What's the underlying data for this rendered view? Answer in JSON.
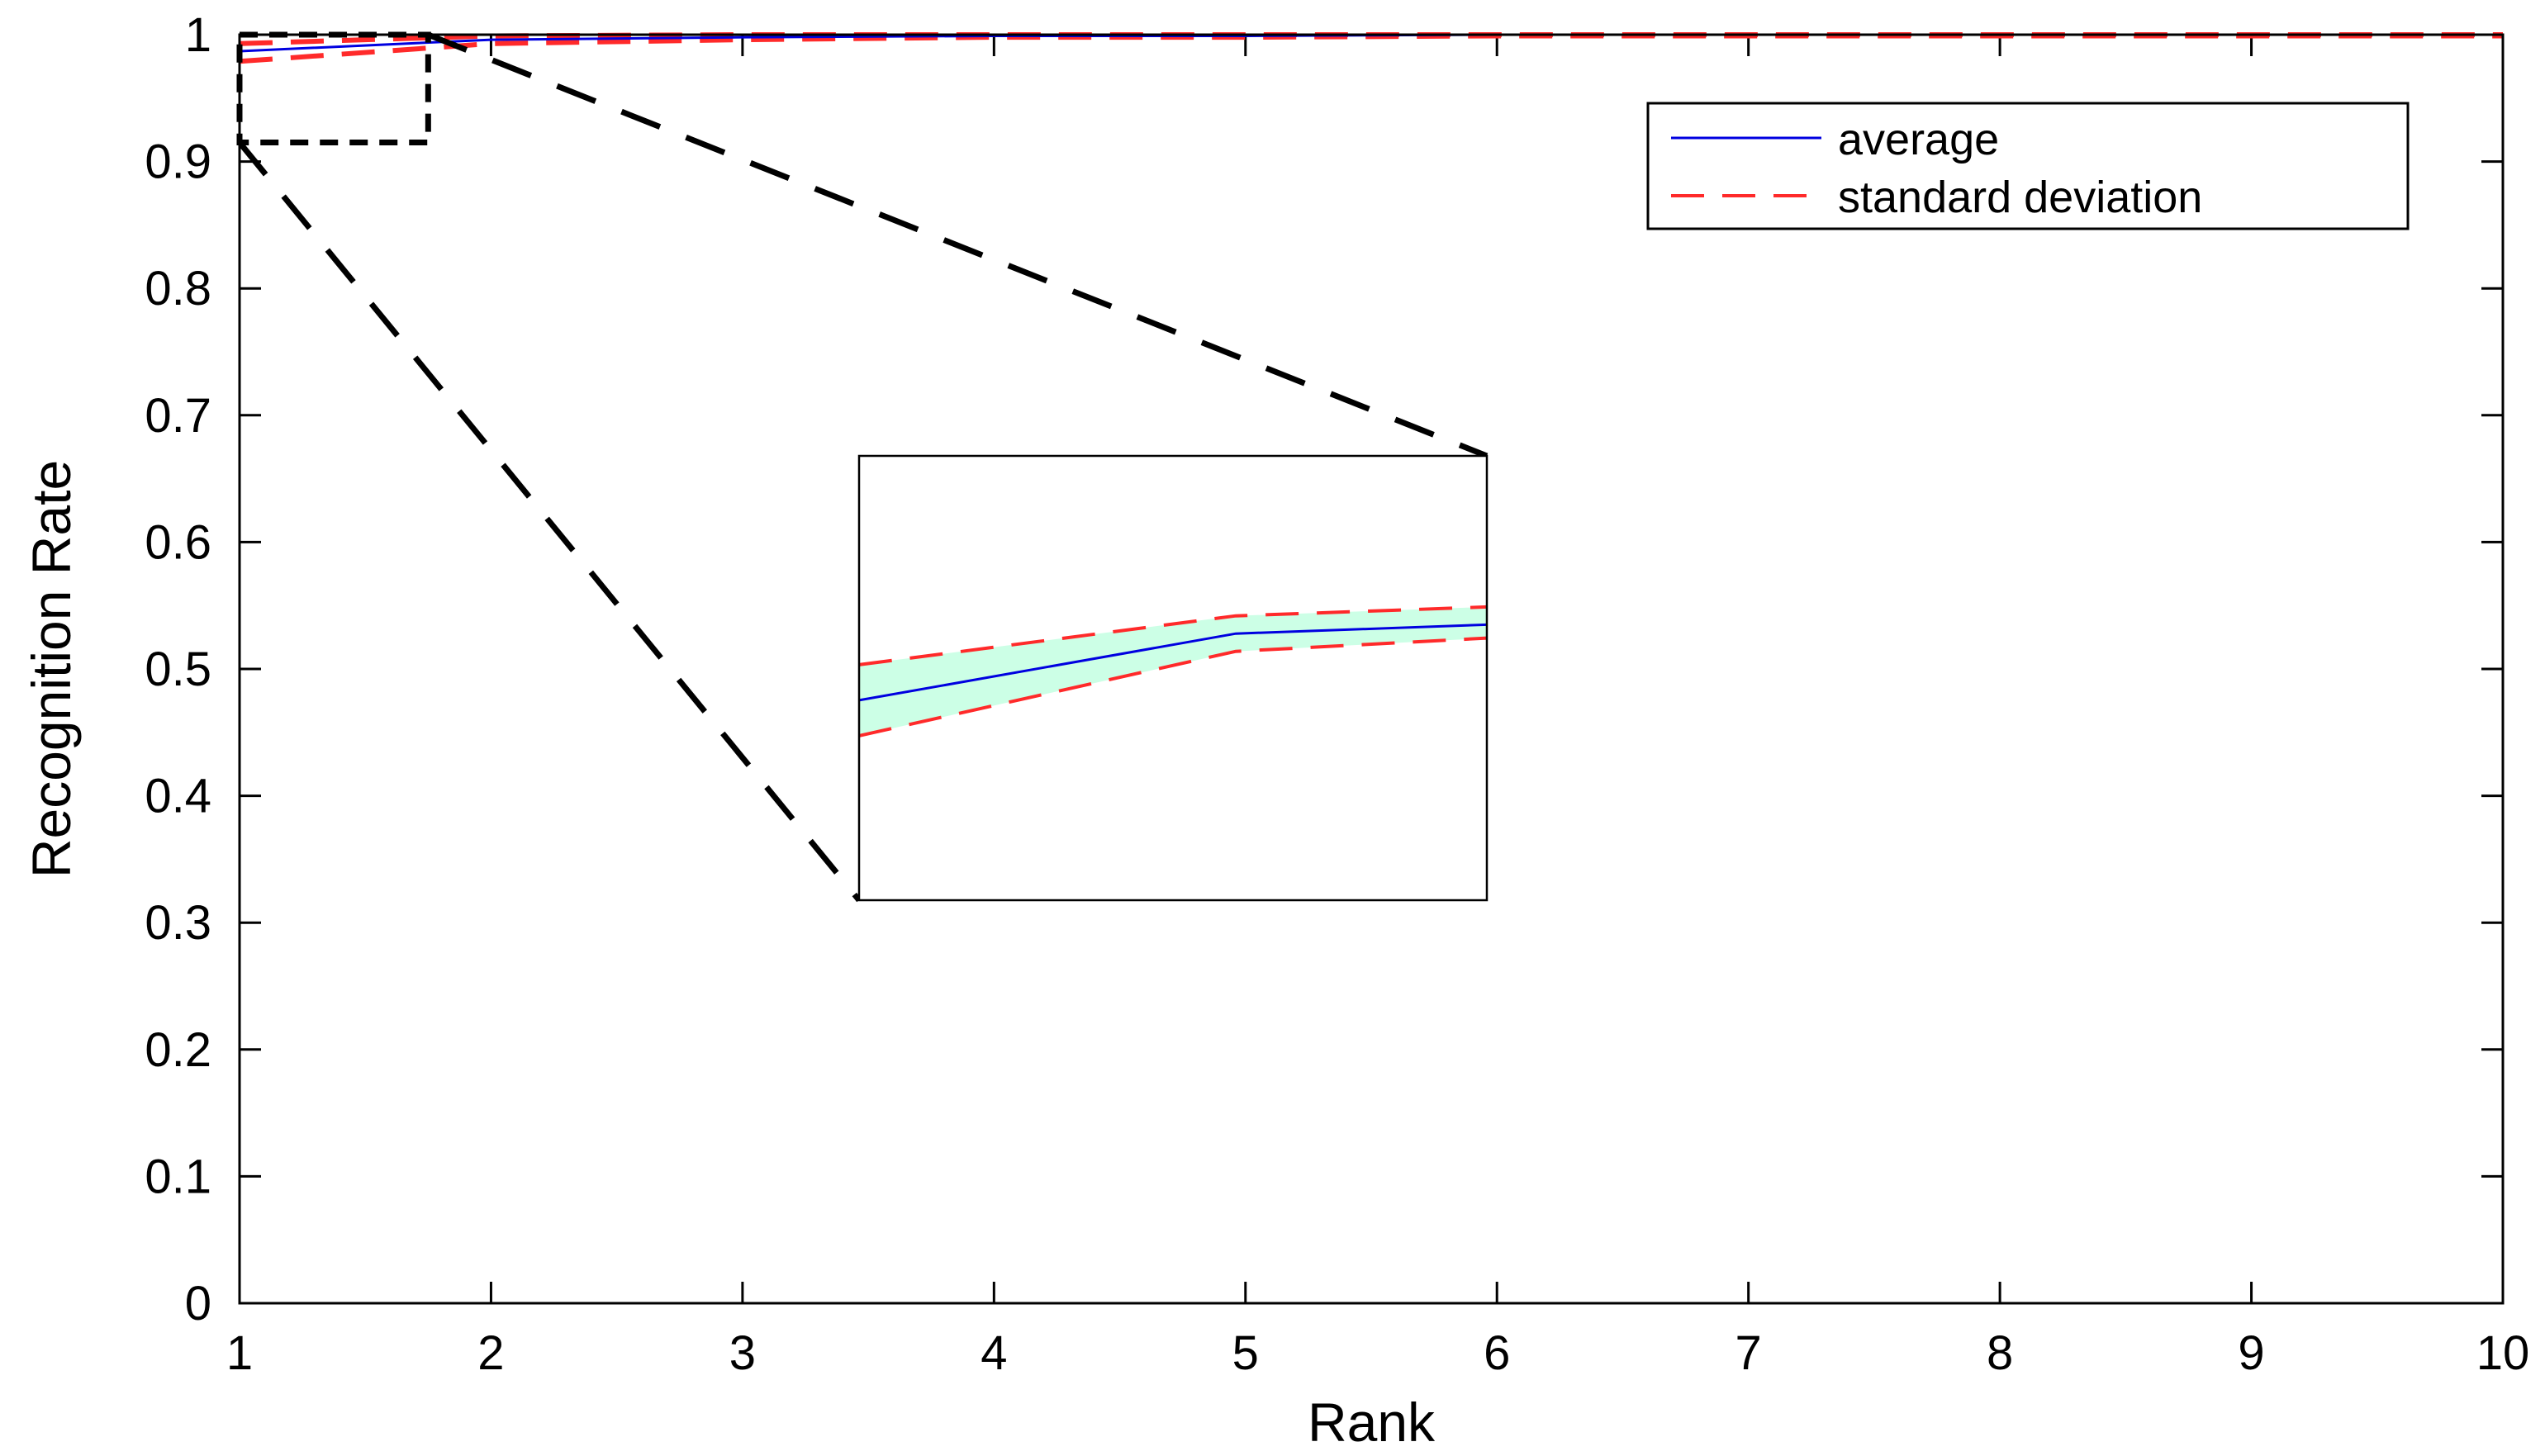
{
  "chart_data": {
    "type": "line",
    "xlabel": "Rank",
    "ylabel": "Recognition Rate",
    "xlim": [
      1,
      10
    ],
    "ylim": [
      0,
      1
    ],
    "x_ticks": [
      1,
      2,
      3,
      4,
      5,
      6,
      7,
      8,
      9,
      10
    ],
    "y_ticks": [
      0,
      0.1,
      0.2,
      0.3,
      0.4,
      0.5,
      0.6,
      0.7,
      0.8,
      0.9,
      1
    ],
    "x_tick_labels": [
      "1",
      "2",
      "3",
      "4",
      "5",
      "6",
      "7",
      "8",
      "9",
      "10"
    ],
    "y_tick_labels": [
      "0",
      "0.1",
      "0.2",
      "0.3",
      "0.4",
      "0.5",
      "0.6",
      "0.7",
      "0.8",
      "0.9",
      "1"
    ],
    "grid": false,
    "legend_position": "top-right",
    "series": [
      {
        "name": "average",
        "color": "#0000e0",
        "style": "solid",
        "x": [
          1,
          2,
          3,
          4,
          5,
          6,
          7,
          8,
          9,
          10
        ],
        "values": [
          0.987,
          0.996,
          0.998,
          0.999,
          0.999,
          1.0,
          1.0,
          1.0,
          1.0,
          1.0
        ]
      },
      {
        "name": "standard deviation",
        "color": "#ff2a2a",
        "style": "dashed",
        "upper": [
          0.993,
          0.999,
          1.0,
          1.0,
          1.0,
          1.0,
          1.0,
          1.0,
          1.0,
          1.0
        ],
        "lower": [
          0.979,
          0.993,
          0.996,
          0.998,
          0.998,
          0.999,
          0.999,
          0.999,
          0.999,
          0.999
        ]
      }
    ],
    "zoom_inset": {
      "source_x_range": [
        1,
        1.75
      ],
      "source_y_range": [
        0.915,
        1.0
      ],
      "band_color": "#ccffe6",
      "x": [
        0,
        0.6,
        1
      ],
      "average": [
        0.45,
        0.6,
        0.62
      ],
      "upper": [
        0.53,
        0.64,
        0.66
      ],
      "lower": [
        0.37,
        0.56,
        0.59
      ]
    }
  }
}
